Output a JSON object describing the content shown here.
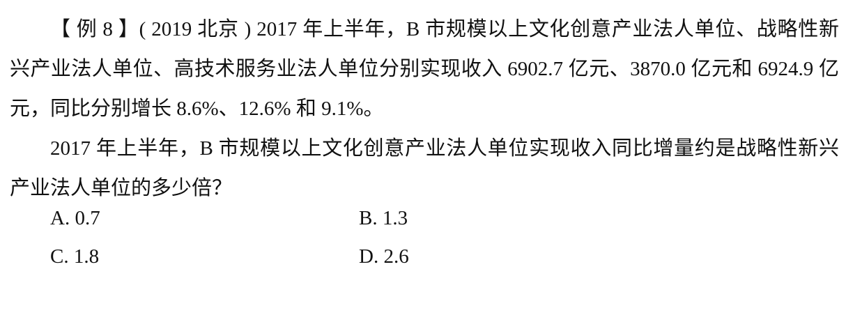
{
  "question": {
    "intro": "【 例 8 】( 2019  北京 ) 2017 年上半年，B 市规模以上文化创意产业法人单位、战略性新兴产业法人单位、高技术服务业法人单位分别实现收入 6902.7 亿元、3870.0 亿元和 6924.9 亿元，同比分别增长 8.6%、12.6% 和 9.1%。",
    "stem": "2017 年上半年，B 市规模以上文化创意产业法人单位实现收入同比增量约是战略性新兴产业法人单位的多少倍？"
  },
  "options": {
    "a": "A. 0.7",
    "b": "B. 1.3",
    "c": "C. 1.8",
    "d": "D. 2.6"
  }
}
